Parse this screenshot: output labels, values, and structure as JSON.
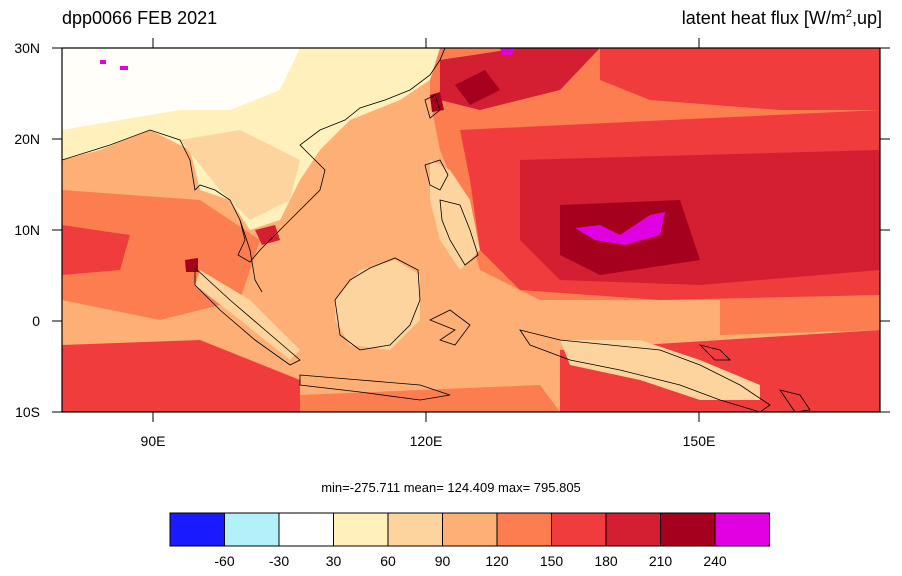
{
  "title": {
    "left": "dpp0066 FEB 2021",
    "right_main": "latent heat flux [W/m",
    "right_sup": "2",
    "right_tail": ",up]"
  },
  "map": {
    "lat_labels": [
      "30N",
      "20N",
      "10N",
      "0",
      "10S"
    ],
    "lon_labels": [
      "90E",
      "120E",
      "150E"
    ]
  },
  "stats": "min=-275.711  mean= 124.409  max= 795.805",
  "colorbar": {
    "labels": [
      "-60",
      "-30",
      "30",
      "60",
      "90",
      "120",
      "150",
      "180",
      "210",
      "240"
    ],
    "colors": [
      "#1a1aff",
      "#b4f0fa",
      "#ffffff",
      "#fff0bc",
      "#fdd49e",
      "#fdaf75",
      "#fc7d50",
      "#f03c3c",
      "#d41e32",
      "#a5001e",
      "#e100e1"
    ]
  }
}
